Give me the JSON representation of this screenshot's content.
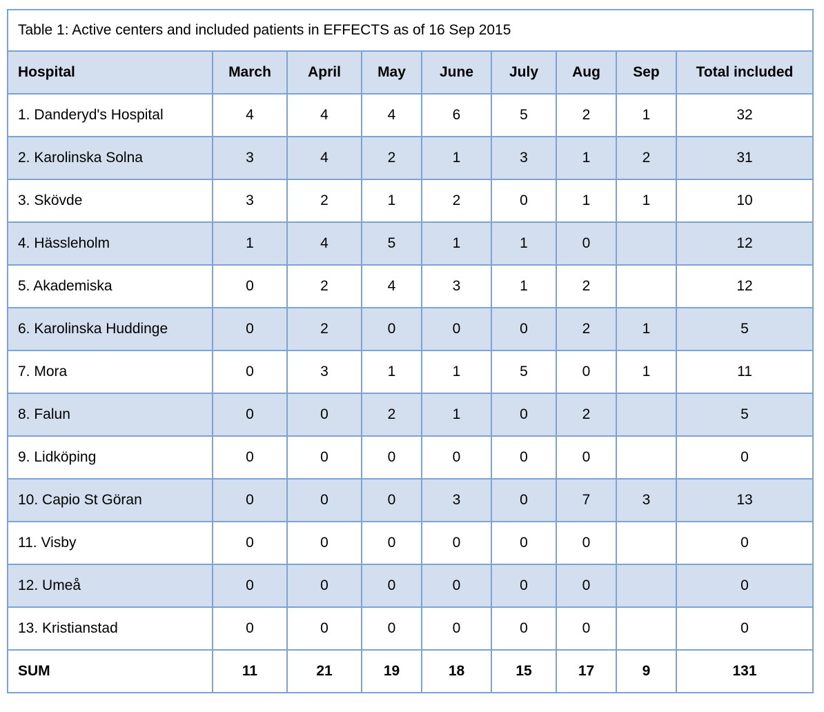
{
  "title": "Table 1: Active centers and included patients in EFFECTS as of 16 Sep 2015",
  "columns": [
    "Hospital",
    "March",
    "April",
    "May",
    "June",
    "July",
    "Aug",
    "Sep",
    "Total included"
  ],
  "rows": [
    {
      "name": "1. Danderyd's Hospital",
      "values": [
        "4",
        "4",
        "4",
        "6",
        "5",
        "2",
        "1",
        "32"
      ]
    },
    {
      "name": "2. Karolinska Solna",
      "values": [
        "3",
        "4",
        "2",
        "1",
        "3",
        "1",
        "2",
        "31"
      ]
    },
    {
      "name": "3. Skövde",
      "values": [
        "3",
        "2",
        "1",
        "2",
        "0",
        "1",
        "1",
        "10"
      ]
    },
    {
      "name": "4. Hässleholm",
      "values": [
        "1",
        "4",
        "5",
        "1",
        "1",
        "0",
        "",
        "12"
      ]
    },
    {
      "name": "5. Akademiska",
      "values": [
        "0",
        "2",
        "4",
        "3",
        "1",
        "2",
        "",
        "12"
      ]
    },
    {
      "name": "6. Karolinska Huddinge",
      "values": [
        "0",
        "2",
        "0",
        "0",
        "0",
        "2",
        "1",
        "5"
      ]
    },
    {
      "name": "7. Mora",
      "values": [
        "0",
        "3",
        "1",
        "1",
        "5",
        "0",
        "1",
        "11"
      ]
    },
    {
      "name": "8. Falun",
      "values": [
        "0",
        "0",
        "2",
        "1",
        "0",
        "2",
        "",
        "5"
      ]
    },
    {
      "name": "9. Lidköping",
      "values": [
        "0",
        "0",
        "0",
        "0",
        "0",
        "0",
        "",
        "0"
      ]
    },
    {
      "name": "10. Capio St Göran",
      "values": [
        "0",
        "0",
        "0",
        "3",
        "0",
        "7",
        "3",
        "13"
      ]
    },
    {
      "name": "11. Visby",
      "values": [
        "0",
        "0",
        "0",
        "0",
        "0",
        "0",
        "",
        "0"
      ]
    },
    {
      "name": "12. Umeå",
      "values": [
        "0",
        "0",
        "0",
        "0",
        "0",
        "0",
        "",
        "0"
      ]
    },
    {
      "name": "13. Kristianstad",
      "values": [
        "0",
        "0",
        "0",
        "0",
        "0",
        "0",
        "",
        "0"
      ]
    }
  ],
  "sum": {
    "name": "SUM",
    "values": [
      "11",
      "21",
      "19",
      "18",
      "15",
      "17",
      "9",
      "131"
    ]
  },
  "colors": {
    "border": "#7ba3d4",
    "shade": "#d3dfee"
  }
}
